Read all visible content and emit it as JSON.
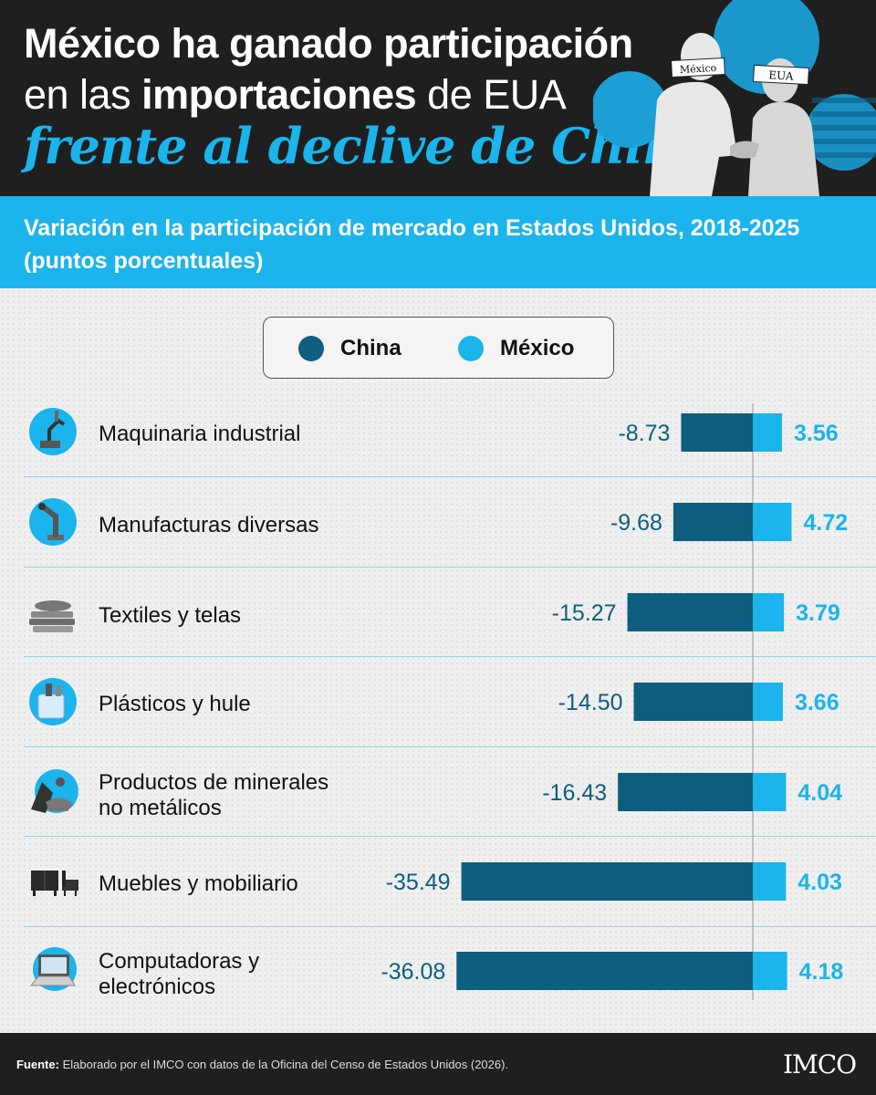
{
  "header": {
    "title_line1": "México ha ganado participación",
    "title_line2_pre": "en las ",
    "title_line2_bold": "importaciones",
    "title_line2_post": " de EUA",
    "title_line3": "frente al declive de China",
    "photo_tag_left": "México",
    "photo_tag_right": "EUA"
  },
  "subtitle": "Variación en la participación de mercado en Estados Unidos, 2018-2025 (puntos porcentuales)",
  "legend": [
    {
      "label": "China",
      "color": "#0d5e7f"
    },
    {
      "label": "México",
      "color": "#1bb4ec"
    }
  ],
  "chart_data": {
    "type": "bar",
    "orientation": "horizontal-diverging",
    "categories": [
      "Maquinaria industrial",
      "Manufacturas diversas",
      "Textiles y telas",
      "Plásticos y hule",
      "Productos de minerales no metálicos",
      "Muebles y mobiliario",
      "Computadoras y electrónicos"
    ],
    "series": [
      {
        "name": "China",
        "values": [
          -8.73,
          -9.68,
          -15.27,
          -14.5,
          -16.43,
          -35.49,
          -36.08
        ],
        "color": "#0d5e7f"
      },
      {
        "name": "México",
        "values": [
          3.56,
          4.72,
          3.79,
          3.66,
          4.04,
          4.03,
          4.18
        ],
        "color": "#1bb4ec"
      }
    ],
    "labels_china": [
      "-8.73",
      "-9.68",
      "-15.27",
      "-14.50",
      "-16.43",
      "-35.49",
      "-36.08"
    ],
    "labels_mexico": [
      "3.56",
      "4.72",
      "3.79",
      "3.66",
      "4.04",
      "4.03",
      "4.18"
    ]
  },
  "rows": [
    {
      "icon": "industrial-robot-arm-icon",
      "line1": "Maquinaria industrial",
      "line2": ""
    },
    {
      "icon": "robot-arm-icon",
      "line1": "Manufacturas diversas",
      "line2": ""
    },
    {
      "icon": "folded-fabric-icon",
      "line1": "Textiles y telas",
      "line2": ""
    },
    {
      "icon": "plastic-containers-icon",
      "line1": "Plásticos y hule",
      "line2": ""
    },
    {
      "icon": "minerals-icon",
      "line1": "Productos de minerales",
      "line2": "no metálicos"
    },
    {
      "icon": "furniture-icon",
      "line1": "Muebles y mobiliario",
      "line2": ""
    },
    {
      "icon": "laptop-icon",
      "line1": "Computadoras y",
      "line2": "electrónicos"
    }
  ],
  "footer": {
    "source_label": "Fuente:",
    "source_text": " Elaborado por el IMCO con datos de la Oficina del Censo de Estados Unidos (2026).",
    "logo": "IMCO"
  }
}
